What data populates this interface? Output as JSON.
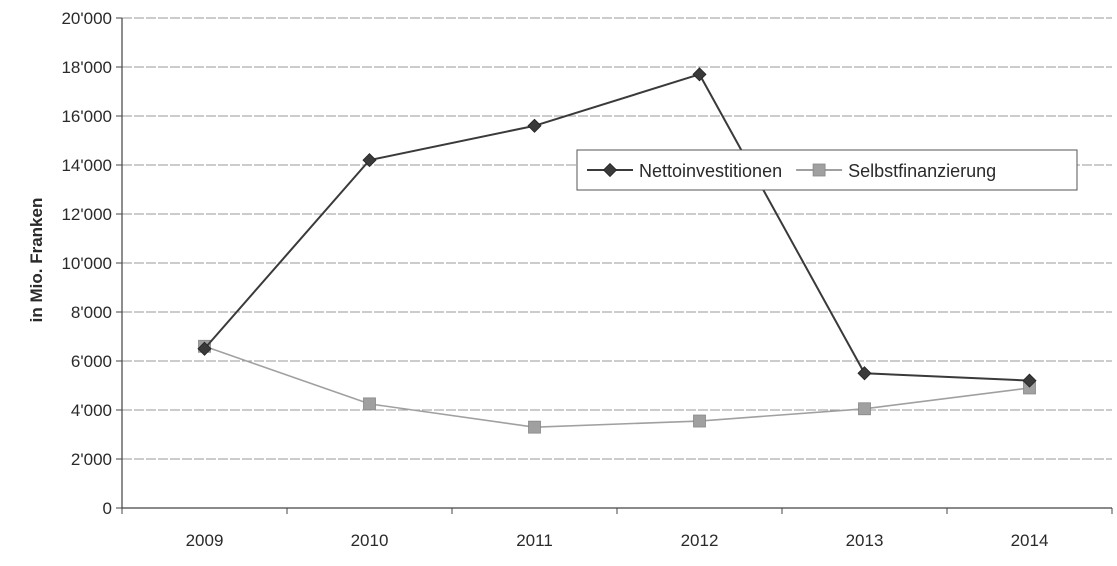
{
  "chart_data": {
    "type": "line",
    "title": "",
    "xlabel": "",
    "ylabel": "in Mio. Franken",
    "categories": [
      "2009",
      "2010",
      "2011",
      "2012",
      "2013",
      "2014"
    ],
    "ylim": [
      0,
      20000
    ],
    "yticks": [
      {
        "value": 0,
        "label": "0"
      },
      {
        "value": 2000,
        "label": "2'000"
      },
      {
        "value": 4000,
        "label": "4'000"
      },
      {
        "value": 6000,
        "label": "6'000"
      },
      {
        "value": 8000,
        "label": "8'000"
      },
      {
        "value": 10000,
        "label": "10'000"
      },
      {
        "value": 12000,
        "label": "12'000"
      },
      {
        "value": 14000,
        "label": "14'000"
      },
      {
        "value": 16000,
        "label": "16'000"
      },
      {
        "value": 18000,
        "label": "18'000"
      },
      {
        "value": 20000,
        "label": "20'000"
      }
    ],
    "grid": true,
    "legend_position": "top-right",
    "series": [
      {
        "name": "Nettoinvestitionen",
        "values": [
          6500,
          14200,
          15600,
          17700,
          5500,
          5200
        ],
        "color": "#3a3a3a",
        "marker": "diamond"
      },
      {
        "name": "Selbstfinanzierung",
        "values": [
          6600,
          4250,
          3300,
          3550,
          4050,
          4900
        ],
        "color": "#a0a0a0",
        "marker": "square"
      }
    ]
  }
}
